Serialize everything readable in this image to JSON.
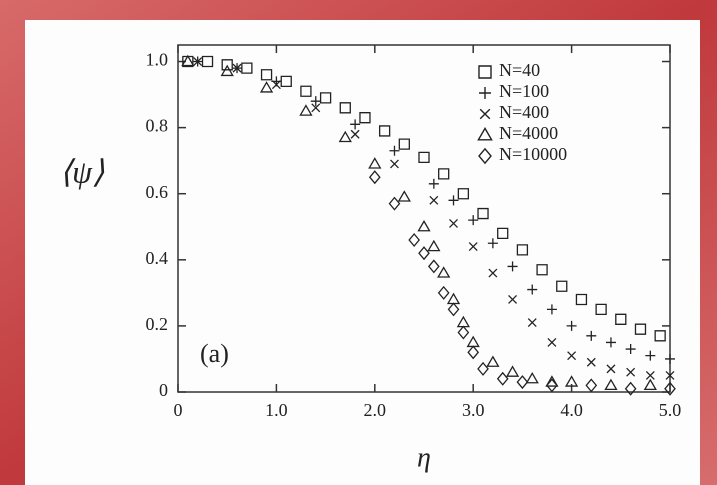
{
  "chart_data": {
    "type": "scatter",
    "x_label": "η",
    "y_label": "⟨ψ⟩",
    "annotation": "(a)",
    "xlim": [
      0,
      5
    ],
    "ylim": [
      0,
      1.05
    ],
    "xticks": [
      0,
      {
        "value": 1,
        "label": "1.0"
      },
      {
        "value": 2,
        "label": "2.0"
      },
      {
        "value": 3,
        "label": "3.0"
      },
      {
        "value": 4,
        "label": "4.0"
      },
      {
        "value": 5,
        "label": "5.0"
      }
    ],
    "yticks": [
      0,
      0.2,
      0.4,
      0.6,
      0.8,
      {
        "value": 1,
        "label": "1.0"
      }
    ],
    "legend": "upper right",
    "series": [
      {
        "name": "N=40",
        "marker": "square",
        "color": "#222222",
        "x": [
          0.1,
          0.3,
          0.5,
          0.7,
          0.9,
          1.1,
          1.3,
          1.5,
          1.7,
          1.9,
          2.1,
          2.3,
          2.5,
          2.7,
          2.9,
          3.1,
          3.3,
          3.5,
          3.7,
          3.9,
          4.1,
          4.3,
          4.5,
          4.7,
          4.9
        ],
        "values": [
          1.0,
          1.0,
          0.99,
          0.98,
          0.96,
          0.94,
          0.91,
          0.89,
          0.86,
          0.83,
          0.79,
          0.75,
          0.71,
          0.66,
          0.6,
          0.54,
          0.48,
          0.43,
          0.37,
          0.32,
          0.28,
          0.25,
          0.22,
          0.19,
          0.17
        ]
      },
      {
        "name": "N=100",
        "marker": "plus",
        "color": "#222222",
        "x": [
          0.2,
          0.6,
          1.0,
          1.4,
          1.8,
          2.2,
          2.6,
          2.8,
          3.0,
          3.2,
          3.4,
          3.6,
          3.8,
          4.0,
          4.2,
          4.4,
          4.6,
          4.8,
          5.0
        ],
        "values": [
          1.0,
          0.98,
          0.94,
          0.88,
          0.81,
          0.73,
          0.63,
          0.58,
          0.52,
          0.45,
          0.38,
          0.31,
          0.25,
          0.2,
          0.17,
          0.15,
          0.13,
          0.11,
          0.1
        ]
      },
      {
        "name": "N=400",
        "marker": "cross",
        "color": "#222222",
        "x": [
          0.2,
          0.6,
          1.0,
          1.4,
          1.8,
          2.2,
          2.6,
          2.8,
          3.0,
          3.2,
          3.4,
          3.6,
          3.8,
          4.0,
          4.2,
          4.4,
          4.6,
          4.8,
          5.0
        ],
        "values": [
          1.0,
          0.98,
          0.93,
          0.86,
          0.78,
          0.69,
          0.58,
          0.51,
          0.44,
          0.36,
          0.28,
          0.21,
          0.15,
          0.11,
          0.09,
          0.07,
          0.06,
          0.05,
          0.05
        ]
      },
      {
        "name": "N=4000",
        "marker": "triangle",
        "color": "#222222",
        "x": [
          0.1,
          0.5,
          0.9,
          1.3,
          1.7,
          2.0,
          2.3,
          2.5,
          2.6,
          2.7,
          2.8,
          2.9,
          3.0,
          3.2,
          3.4,
          3.6,
          3.8,
          4.0,
          4.4,
          4.8
        ],
        "values": [
          1.0,
          0.97,
          0.92,
          0.85,
          0.77,
          0.69,
          0.59,
          0.5,
          0.44,
          0.36,
          0.28,
          0.21,
          0.15,
          0.09,
          0.06,
          0.04,
          0.03,
          0.03,
          0.02,
          0.02
        ]
      },
      {
        "name": "N=10000",
        "marker": "diamond",
        "color": "#222222",
        "x": [
          2.0,
          2.2,
          2.4,
          2.5,
          2.6,
          2.7,
          2.8,
          2.9,
          3.0,
          3.1,
          3.3,
          3.5,
          3.8,
          4.2,
          4.6,
          5.0
        ],
        "values": [
          0.65,
          0.57,
          0.46,
          0.42,
          0.38,
          0.3,
          0.25,
          0.18,
          0.12,
          0.07,
          0.04,
          0.03,
          0.02,
          0.02,
          0.01,
          0.01
        ]
      }
    ]
  }
}
